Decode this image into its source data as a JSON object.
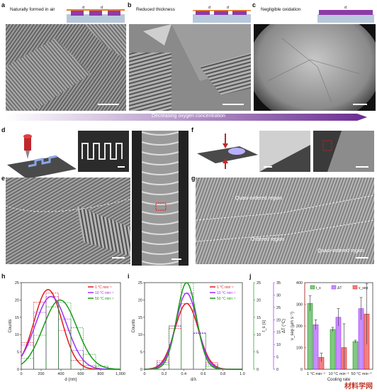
{
  "panels": {
    "a": {
      "letter": "a",
      "caption": "Naturally formed in air",
      "d": "d"
    },
    "b": {
      "letter": "b",
      "caption": "Reduced thickness",
      "d": "d"
    },
    "c": {
      "letter": "c",
      "caption": "Negligible oxidation",
      "d": "d"
    },
    "d": {
      "letter": "d"
    },
    "e": {
      "letter": "e"
    },
    "f": {
      "letter": "f"
    },
    "g": {
      "letter": "g",
      "regions": [
        "Quasi-ordered region",
        "Ordered region",
        "Quasi-ordered region"
      ]
    },
    "h": {
      "letter": "h"
    },
    "i": {
      "letter": "i"
    },
    "j": {
      "letter": "j"
    }
  },
  "gradient_label": "Decreasing oxygen concentration",
  "colors": {
    "red": "#e31a1c",
    "purple": "#9b30ff",
    "green": "#1a9a1a",
    "strip": "#7b3fa0"
  },
  "watermark": "材料学网",
  "chart_data": [
    {
      "type": "histogram",
      "id": "h",
      "xlabel": "d (nm)",
      "ylabel": "Counts",
      "xticks": [
        "0",
        "200",
        "400",
        "600",
        "800",
        "1,000"
      ],
      "yticks": [
        "0",
        "5",
        "10",
        "15",
        "20",
        "25"
      ],
      "xlim": [
        0,
        1000
      ],
      "ylim": [
        0,
        25
      ],
      "legend": [
        "1 °C min⁻¹",
        "10 °C min⁻¹",
        "50 °C min⁻¹"
      ],
      "series": [
        {
          "name": "1 °C min⁻¹",
          "mean": 270,
          "sd": 140,
          "peak": 23
        },
        {
          "name": "10 °C min⁻¹",
          "mean": 300,
          "sd": 160,
          "peak": 21
        },
        {
          "name": "50 °C min⁻¹",
          "mean": 390,
          "sd": 170,
          "peak": 20
        }
      ]
    },
    {
      "type": "histogram",
      "id": "i",
      "xlabel": "d/λ",
      "ylabel": "Counts",
      "xticks": [
        "0",
        "0.2",
        "0.4",
        "0.6",
        "0.8",
        "1.0"
      ],
      "yticks": [
        "0",
        "5",
        "10",
        "15",
        "20",
        "25"
      ],
      "xlim": [
        0,
        1
      ],
      "ylim": [
        0,
        25
      ],
      "legend": [
        "1 °C min⁻¹",
        "10 °C min⁻¹",
        "50 °C min⁻¹"
      ],
      "series": [
        {
          "name": "1 °C min⁻¹",
          "mean": 0.43,
          "sd": 0.12,
          "peak": 19
        },
        {
          "name": "10 °C min⁻¹",
          "mean": 0.43,
          "sd": 0.11,
          "peak": 22
        },
        {
          "name": "50 °C min⁻¹",
          "mean": 0.43,
          "sd": 0.1,
          "peak": 25
        }
      ]
    },
    {
      "type": "bar",
      "id": "j",
      "xlabel": "Cooling rate",
      "categories": [
        "1 °C min⁻¹",
        "10 °C min⁻¹",
        "50 °C min⁻¹"
      ],
      "axes": [
        {
          "label": "t_s (s)",
          "ticks": [
            "0",
            "5",
            "10",
            "15",
            "20",
            "25"
          ],
          "ylim": [
            0,
            25
          ],
          "color": "#1a9a1a"
        },
        {
          "label": "ΔT (°C)",
          "ticks": [
            "0",
            "5",
            "10",
            "15",
            "20",
            "25",
            "30",
            "35"
          ],
          "ylim": [
            0,
            35
          ],
          "color": "#9b30ff"
        },
        {
          "label": "v_sep (μm s⁻¹)",
          "ticks": [
            "0",
            "100",
            "200",
            "300",
            "400"
          ],
          "ylim": [
            0,
            400
          ],
          "color": "#c0392b"
        }
      ],
      "legend": [
        "t_s",
        "ΔT",
        "v_sep"
      ],
      "series": [
        {
          "name": "t_s",
          "color": "#1a9a1a",
          "values": [
            19,
            11.5,
            8
          ],
          "err": [
            2.2,
            0.6,
            0.4
          ],
          "ymax": 25
        },
        {
          "name": "ΔT",
          "color": "#9b30ff",
          "values": [
            18,
            21,
            24.5
          ],
          "err": [
            2,
            3.5,
            4.5
          ],
          "ymax": 35
        },
        {
          "name": "v_sep",
          "color": "#e31a1c",
          "values": [
            55,
            100,
            255
          ],
          "err": [
            20,
            110,
            140
          ],
          "ymax": 400
        }
      ]
    }
  ]
}
